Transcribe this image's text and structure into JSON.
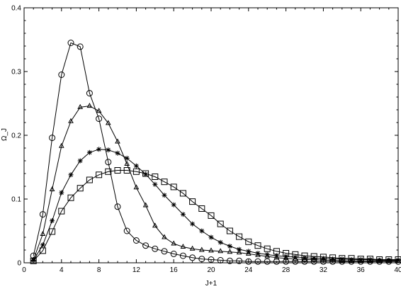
{
  "chart_data": {
    "type": "line",
    "title": "",
    "xlabel": "J+1",
    "ylabel": "Ω_J",
    "xlim": [
      0,
      40
    ],
    "ylim": [
      0,
      0.4
    ],
    "xticks": [
      0,
      4,
      8,
      12,
      16,
      20,
      24,
      28,
      32,
      36,
      40
    ],
    "yticks": [
      0,
      0.1,
      0.2,
      0.3,
      0.4
    ],
    "xtick_labels": [
      "0",
      "4",
      "8",
      "12",
      "16",
      "20",
      "24",
      "28",
      "32",
      "36",
      "40"
    ],
    "ytick_labels": [
      "0",
      "0.1",
      "0.2",
      "0.3",
      "0.4"
    ],
    "grid": false,
    "series": [
      {
        "marker": "circle",
        "x": [
          1,
          2,
          3,
          4,
          5,
          6,
          7,
          8,
          9,
          10,
          11,
          12,
          13,
          14,
          15,
          16,
          17,
          18,
          19,
          20,
          21,
          22,
          23,
          24,
          25,
          26,
          27,
          28,
          29,
          30,
          31,
          32,
          33,
          34,
          35,
          36,
          37,
          38,
          39,
          40
        ],
        "values": [
          0.011,
          0.076,
          0.196,
          0.295,
          0.345,
          0.339,
          0.266,
          0.226,
          0.158,
          0.088,
          0.05,
          0.035,
          0.027,
          0.022,
          0.018,
          0.014,
          0.011,
          0.008,
          0.006,
          0.005,
          0.004,
          0.003,
          0.003,
          0.002,
          0.002,
          0.002,
          0.002,
          0.002,
          0.002,
          0.002,
          0.002,
          0.002,
          0.002,
          0.002,
          0.002,
          0.002,
          0.002,
          0.002,
          0.002,
          0.002
        ]
      },
      {
        "marker": "triangle",
        "x": [
          1,
          2,
          3,
          4,
          5,
          6,
          7,
          8,
          9,
          10,
          11,
          12,
          13,
          14,
          15,
          16,
          17,
          18,
          19,
          20,
          21,
          22,
          23,
          24,
          25,
          26,
          27,
          28,
          29,
          30,
          31,
          32,
          33,
          34,
          35,
          36,
          37,
          38,
          39,
          40
        ],
        "values": [
          0.005,
          0.045,
          0.115,
          0.183,
          0.222,
          0.244,
          0.246,
          0.238,
          0.219,
          0.19,
          0.155,
          0.118,
          0.09,
          0.058,
          0.04,
          0.03,
          0.025,
          0.022,
          0.02,
          0.019,
          0.018,
          0.017,
          0.016,
          0.014,
          0.012,
          0.01,
          0.008,
          0.007,
          0.006,
          0.005,
          0.005,
          0.004,
          0.004,
          0.003,
          0.003,
          0.003,
          0.003,
          0.003,
          0.003,
          0.003
        ]
      },
      {
        "marker": "star",
        "x": [
          1,
          2,
          3,
          4,
          5,
          6,
          7,
          8,
          9,
          10,
          11,
          12,
          13,
          14,
          15,
          16,
          17,
          18,
          19,
          20,
          21,
          22,
          23,
          24,
          25,
          26,
          27,
          28,
          29,
          30,
          31,
          32,
          33,
          34,
          35,
          36,
          37,
          38,
          39,
          40
        ],
        "values": [
          0.004,
          0.028,
          0.066,
          0.11,
          0.138,
          0.16,
          0.173,
          0.178,
          0.177,
          0.172,
          0.164,
          0.152,
          0.139,
          0.123,
          0.106,
          0.091,
          0.076,
          0.061,
          0.05,
          0.04,
          0.032,
          0.026,
          0.021,
          0.018,
          0.015,
          0.013,
          0.011,
          0.01,
          0.009,
          0.008,
          0.007,
          0.007,
          0.006,
          0.006,
          0.005,
          0.005,
          0.005,
          0.004,
          0.004,
          0.004
        ]
      },
      {
        "marker": "square",
        "x": [
          1,
          2,
          3,
          4,
          5,
          6,
          7,
          8,
          9,
          10,
          11,
          12,
          13,
          14,
          15,
          16,
          17,
          18,
          19,
          20,
          21,
          22,
          23,
          24,
          25,
          26,
          27,
          28,
          29,
          30,
          31,
          32,
          33,
          34,
          35,
          36,
          37,
          38,
          39,
          40
        ],
        "values": [
          0.003,
          0.019,
          0.049,
          0.081,
          0.102,
          0.117,
          0.13,
          0.138,
          0.143,
          0.145,
          0.145,
          0.143,
          0.14,
          0.135,
          0.127,
          0.119,
          0.109,
          0.096,
          0.085,
          0.074,
          0.061,
          0.05,
          0.041,
          0.033,
          0.027,
          0.022,
          0.018,
          0.015,
          0.013,
          0.011,
          0.01,
          0.009,
          0.008,
          0.007,
          0.007,
          0.006,
          0.006,
          0.005,
          0.005,
          0.005
        ]
      }
    ]
  }
}
